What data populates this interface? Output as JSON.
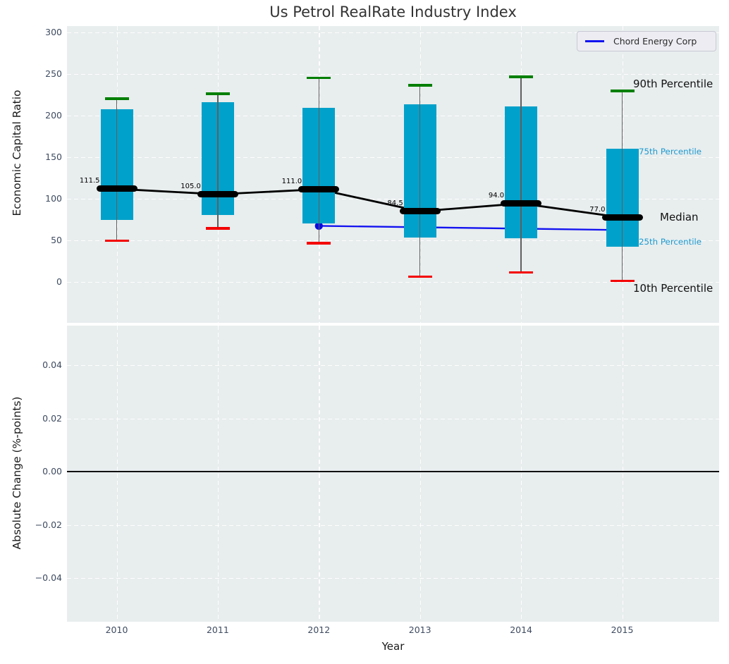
{
  "title": "Us Petrol RealRate Industry Index",
  "legend": {
    "label": "Chord Energy Corp"
  },
  "colors": {
    "box_fill": "#00a1ca",
    "median_marker": "#000000",
    "p90_marker": "#007f00",
    "p10_marker": "#f40000",
    "company_line": "#1212f0",
    "panel_background": "#e8edee",
    "gridline": "#ffffff",
    "tick_label": "#3e4b60",
    "small_annotation": "#1c9ad0"
  },
  "chart_data": [
    {
      "type": "box",
      "title": "Us Petrol RealRate Industry Index",
      "ylabel": "Economic Capital Ratio",
      "categories": [
        "2010",
        "2011",
        "2012",
        "2013",
        "2014",
        "2015"
      ],
      "yticks": [
        {
          "label": "300",
          "v": 300
        },
        {
          "label": "250",
          "v": 250
        },
        {
          "label": "200",
          "v": 200
        },
        {
          "label": "150",
          "v": 150
        },
        {
          "label": "100",
          "v": 100
        },
        {
          "label": "50",
          "v": 50
        },
        {
          "label": "0",
          "v": 0
        }
      ],
      "ylim": [
        -50,
        307
      ],
      "grid": true,
      "series": [
        {
          "name": "90th Percentile",
          "values": [
            220,
            226,
            245,
            236,
            246,
            229
          ]
        },
        {
          "name": "75th Percentile",
          "values": [
            207,
            216,
            209,
            213,
            211,
            160
          ]
        },
        {
          "name": "Median",
          "values": [
            111.5,
            105.0,
            111.0,
            84.5,
            94.0,
            77.0
          ]
        },
        {
          "name": "25th Percentile",
          "values": [
            74,
            80,
            70,
            53,
            52,
            42
          ]
        },
        {
          "name": "10th Percentile",
          "values": [
            49,
            64,
            46,
            6,
            11,
            1
          ]
        }
      ],
      "median_labels": [
        "111.5",
        "105.0",
        "111.0",
        "84.5",
        "94.0",
        "77.0"
      ],
      "company_line": {
        "name": "Chord Energy Corp",
        "x": [
          "2012",
          "2015"
        ],
        "values": [
          67,
          62
        ]
      },
      "annotations": [
        "90th Percentile",
        "75th Percentile",
        "Median",
        "25th Percentile",
        "10th Percentile"
      ],
      "legend_position": "upper right"
    },
    {
      "type": "line",
      "xlabel": "Year",
      "ylabel": "Absolute Change (%-points)",
      "categories": [
        "2010",
        "2011",
        "2012",
        "2013",
        "2014",
        "2015"
      ],
      "yticks": [
        {
          "label": "0.04",
          "v": 0.04
        },
        {
          "label": "0.02",
          "v": 0.02
        },
        {
          "label": "0.00",
          "v": 0.0
        },
        {
          "label": "−0.02",
          "v": -0.02
        },
        {
          "label": "−0.04",
          "v": -0.04
        }
      ],
      "ylim": [
        -0.056,
        0.055
      ],
      "grid": true,
      "zero_line": 0.0
    }
  ]
}
